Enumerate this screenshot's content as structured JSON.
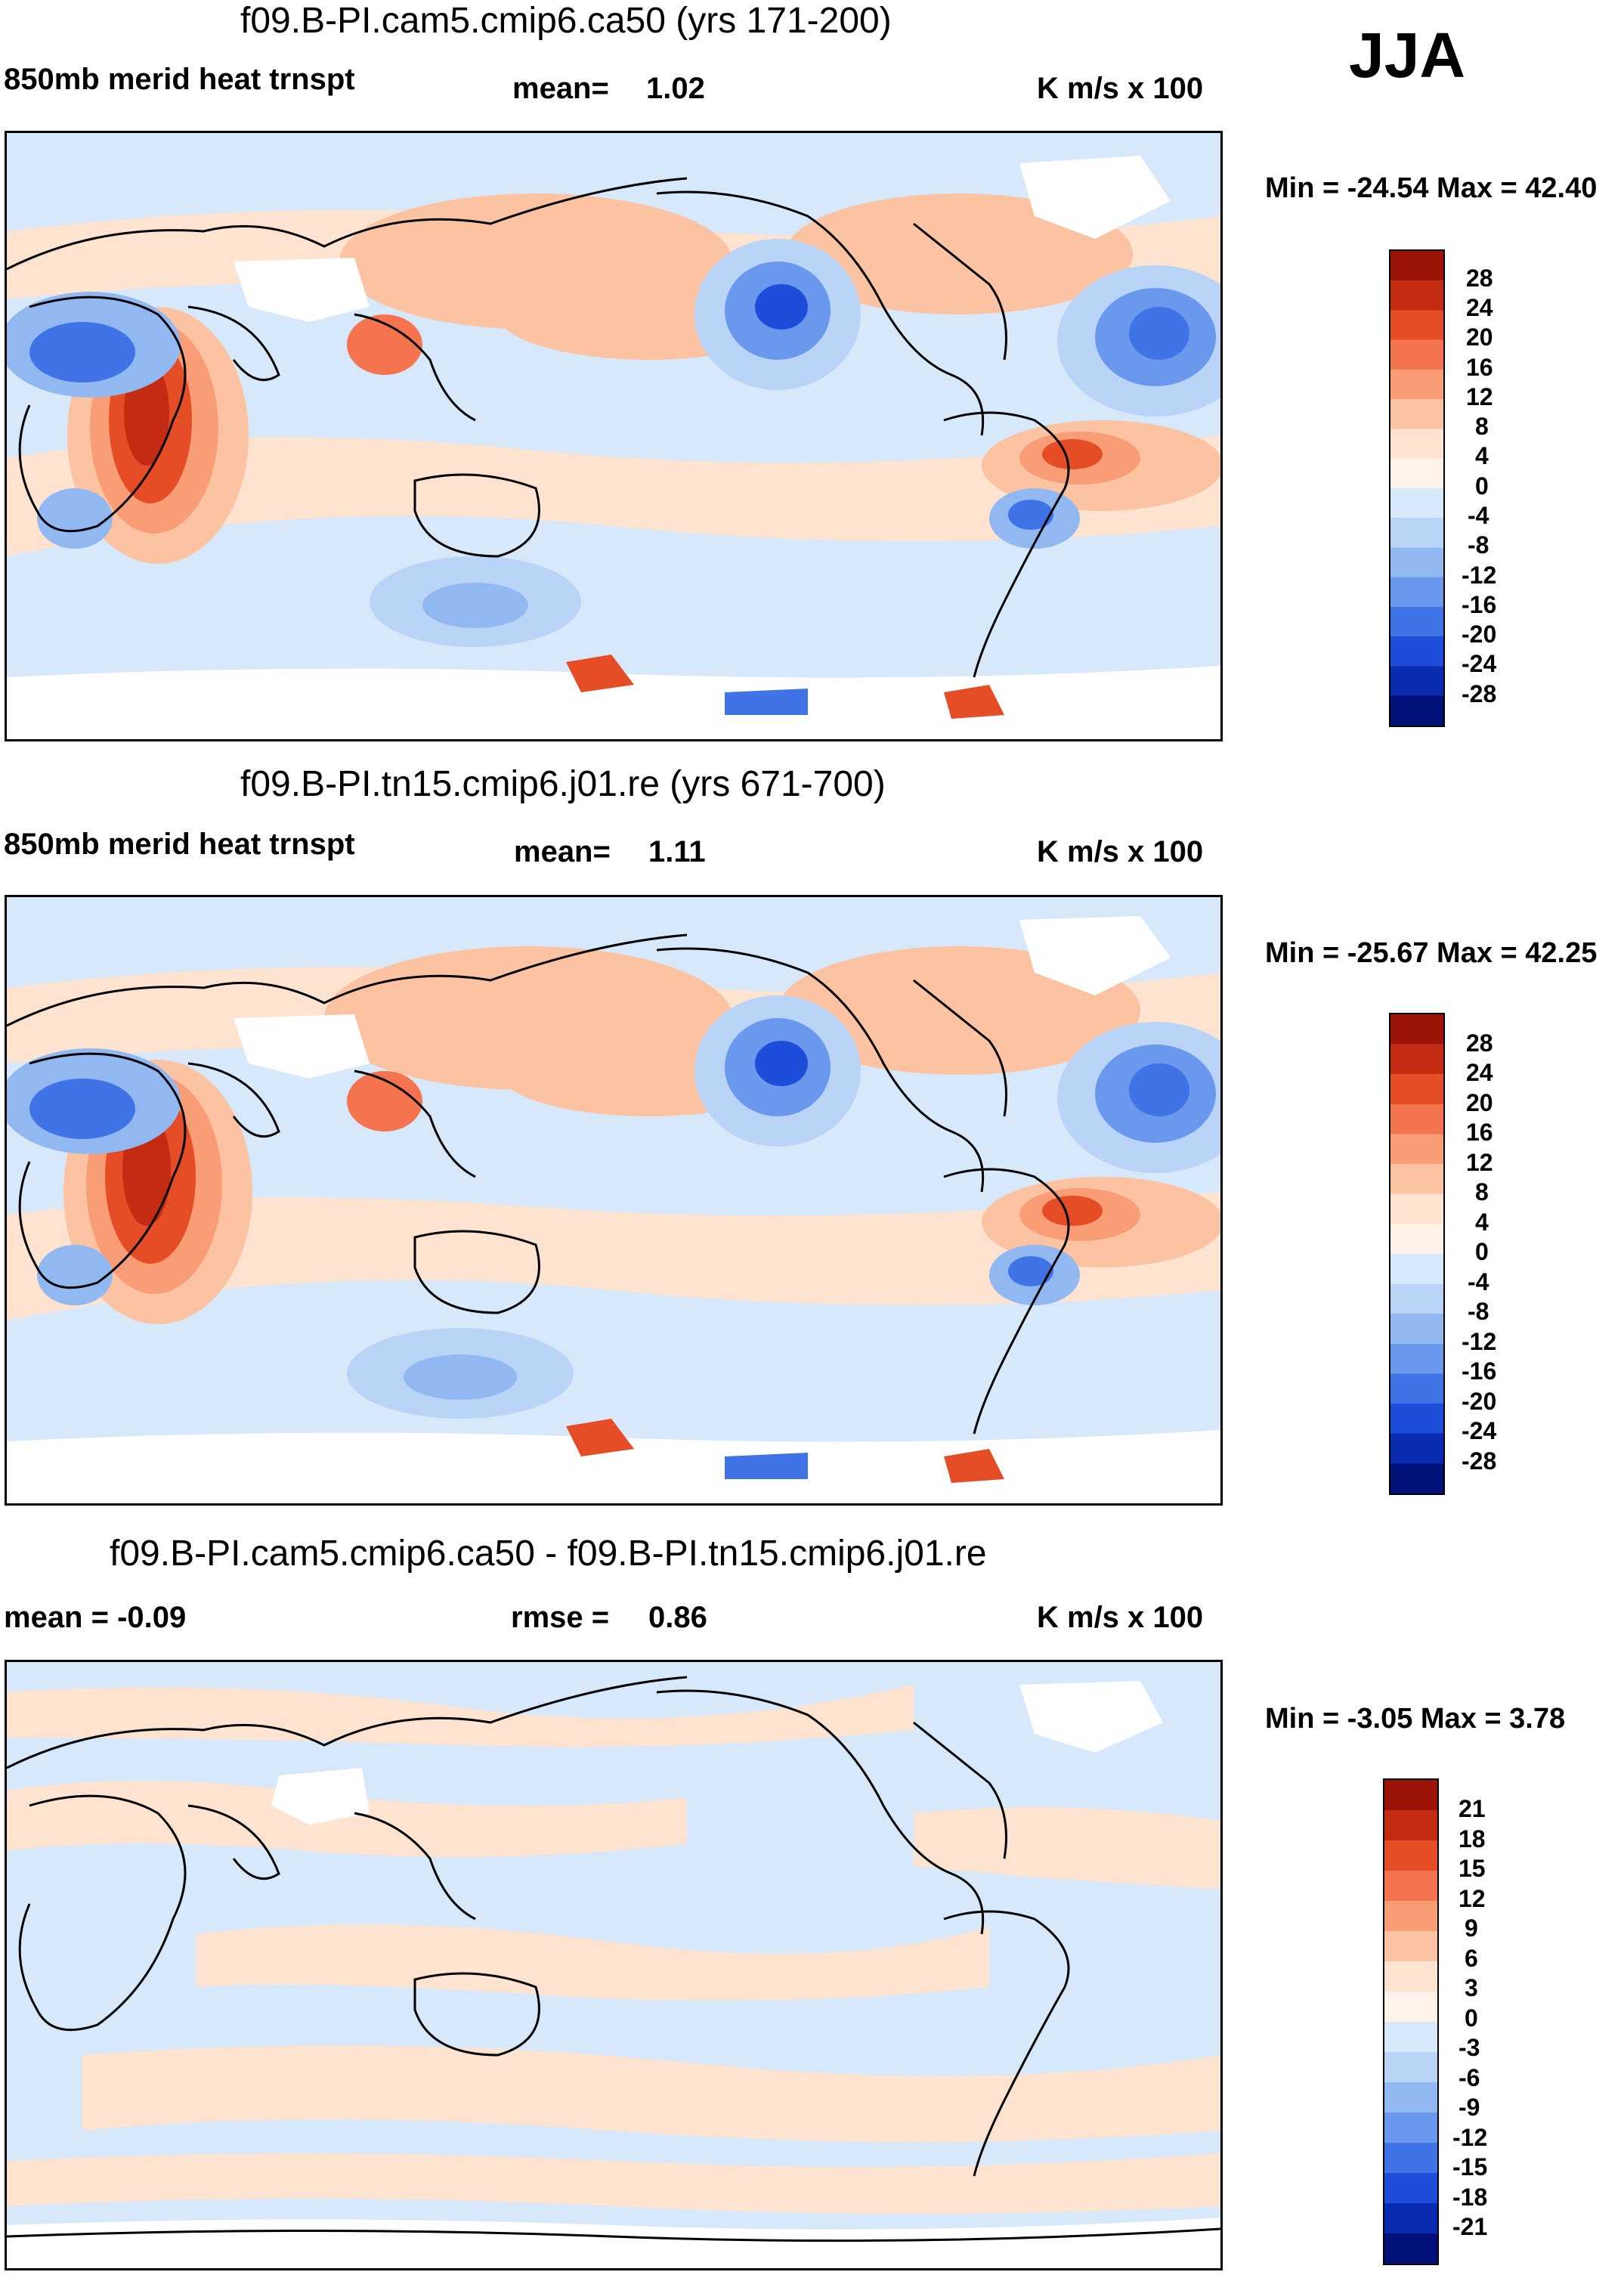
{
  "season": "JJA",
  "palette": {
    "warm": [
      "#fde3d0",
      "#fcc3a3",
      "#f99d76",
      "#f3744e",
      "#e44d25",
      "#c32c12",
      "#9c1408"
    ],
    "cool": [
      "#d8e8fb",
      "#b9d4f7",
      "#91b8f0",
      "#6a98ec",
      "#3f73e6",
      "#1e4ed9",
      "#0a2ab0",
      "#03117a"
    ]
  },
  "panels": [
    {
      "title": "f09.B-PI.cam5.cmip6.ca50 (yrs 171-200)",
      "left_label": "850mb merid heat trnspt",
      "mid_label": "mean=",
      "mid_value": "1.02",
      "units": "K m/s x 100",
      "minmax": "Min = -24.54 Max =  42.40",
      "legend": [
        "28",
        "24",
        "20",
        "16",
        "12",
        "8",
        "4",
        "0",
        "-4",
        "-8",
        "-12",
        "-16",
        "-20",
        "-24",
        "-28"
      ]
    },
    {
      "title": "f09.B-PI.tn15.cmip6.j01.re (yrs 671-700)",
      "left_label": "850mb merid heat trnspt",
      "mid_label": "mean=",
      "mid_value": "1.11",
      "units": "K m/s x 100",
      "minmax": "Min = -25.67 Max =  42.25",
      "legend": [
        "28",
        "24",
        "20",
        "16",
        "12",
        "8",
        "4",
        "0",
        "-4",
        "-8",
        "-12",
        "-16",
        "-20",
        "-24",
        "-28"
      ]
    },
    {
      "title": "f09.B-PI.cam5.cmip6.ca50 - f09.B-PI.tn15.cmip6.j01.re",
      "left_label": "mean =  -0.09",
      "mid_label": "rmse =",
      "mid_value": "0.86",
      "units": "K m/s x 100",
      "minmax": "Min =  -3.05 Max =   3.78",
      "legend": [
        "21",
        "18",
        "15",
        "12",
        "9",
        "6",
        "3",
        "0",
        "-3",
        "-6",
        "-9",
        "-12",
        "-15",
        "-18",
        "-21"
      ]
    }
  ]
}
